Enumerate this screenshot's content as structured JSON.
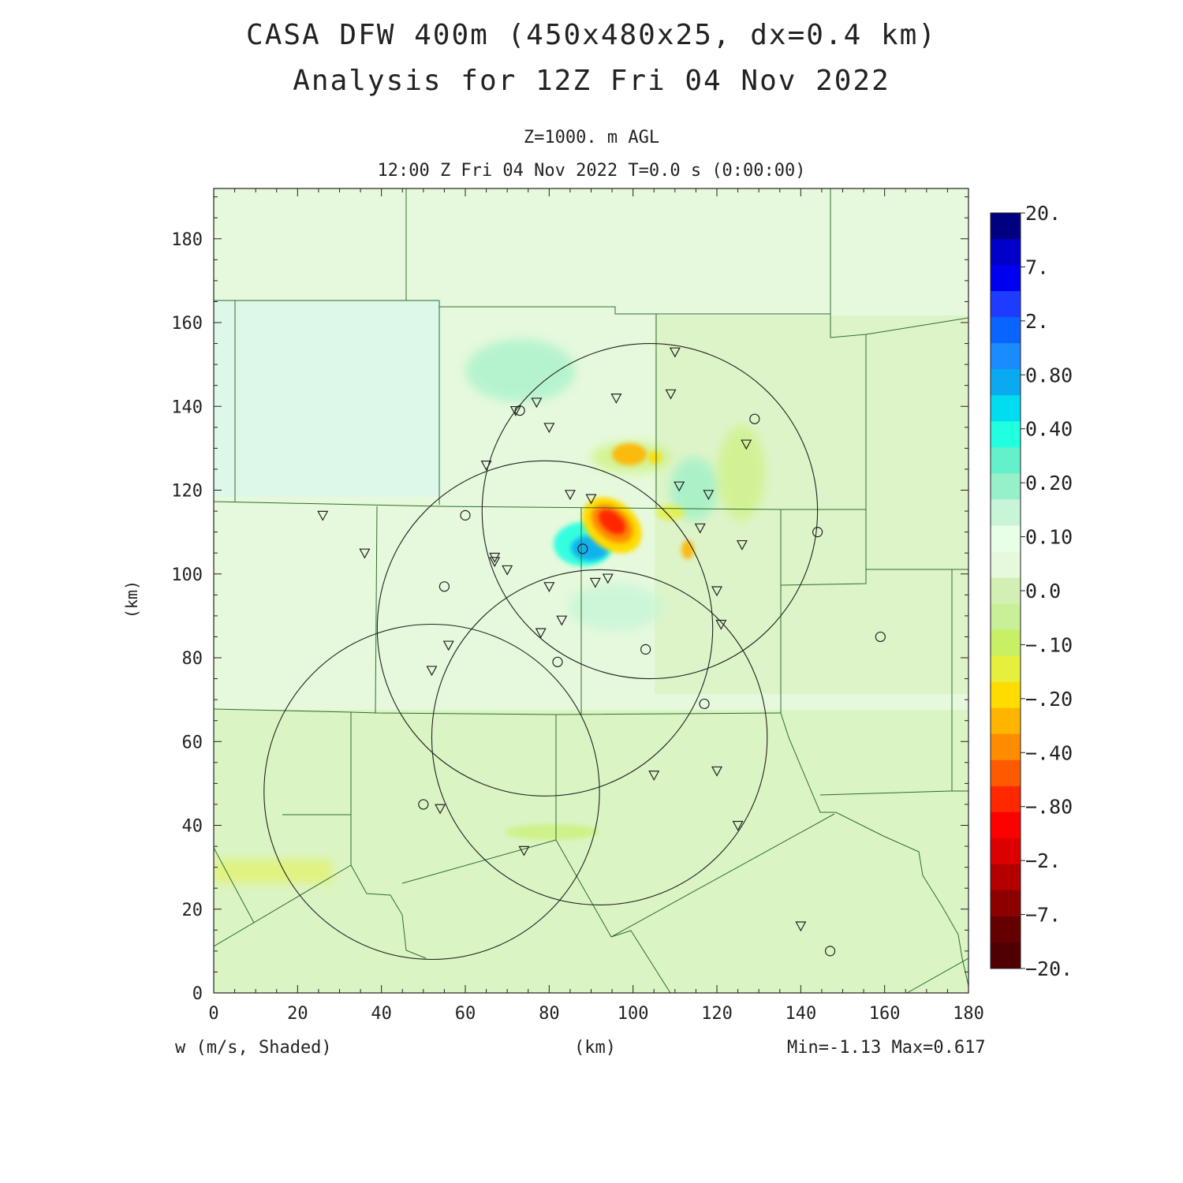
{
  "header": {
    "title_line1": "CASA DFW 400m (450x480x25, dx=0.4 km)",
    "title_line2": "Analysis for 12Z Fri 04 Nov 2022",
    "level": "Z=1000. m AGL",
    "time": "12:00 Z Fri 04 Nov 2022    T=0.0 s (0:00:00)"
  },
  "footer": {
    "variable": "w (m/s, Shaded)",
    "xunits": "(km)",
    "minmax": "Min=-1.13 Max=0.617"
  },
  "axes": {
    "ylabel": "(km)",
    "xlim": [
      0,
      180
    ],
    "ylim": [
      0,
      192
    ],
    "xticks": [
      0,
      20,
      40,
      60,
      80,
      100,
      120,
      140,
      160,
      180
    ],
    "yticks": [
      0,
      20,
      40,
      60,
      80,
      100,
      120,
      140,
      160,
      180
    ]
  },
  "colors": {
    "background_field": "#e6f9dc",
    "county_lines": "#2e6e2e",
    "radar_rings": "#222222"
  },
  "colorbar": {
    "labels": [
      "20.",
      "7.",
      "2.",
      "0.80",
      "0.40",
      "0.20",
      "0.10",
      "0.0",
      "-.10",
      "-.20",
      "-.40",
      "-.80",
      "-2.",
      "-7.",
      "-20."
    ],
    "colors_top_to_bottom": [
      "#000080",
      "#0000c8",
      "#0000f0",
      "#1e3cff",
      "#0a64ff",
      "#1a8cff",
      "#0aaaf0",
      "#00dcf0",
      "#20ffe0",
      "#64f0c8",
      "#96f0c8",
      "#c8f5d8",
      "#e6ffe6",
      "#e6f9dc",
      "#d2f0b4",
      "#c8f096",
      "#c8f064",
      "#e6f03c",
      "#ffdc00",
      "#ffb400",
      "#ff8c00",
      "#ff5a00",
      "#ff2800",
      "#ff0000",
      "#dc0000",
      "#b40000",
      "#8c0000",
      "#640000",
      "#500000"
    ]
  },
  "chart_data": {
    "type": "heatmap",
    "variable": "w (m/s, Shaded)",
    "level": "Z=1000. m AGL",
    "min": -1.13,
    "max": 0.617,
    "xlim": [
      0,
      180
    ],
    "ylim": [
      0,
      192
    ],
    "radar_rings": [
      {
        "center_km": [
          104,
          115
        ],
        "radius_km": 40
      },
      {
        "center_km": [
          79,
          87
        ],
        "radius_km": 40
      },
      {
        "center_km": [
          92,
          61
        ],
        "radius_km": 40
      },
      {
        "center_km": [
          52,
          48
        ],
        "radius_km": 40
      }
    ],
    "features": [
      {
        "kind": "downdraft_max",
        "center_km": [
          97,
          111
        ],
        "value": -1.13
      },
      {
        "kind": "updraft",
        "center_km": [
          90,
          107
        ],
        "value": 0.617
      },
      {
        "kind": "downdraft",
        "center_km": [
          101,
          128
        ],
        "value": -0.4
      },
      {
        "kind": "downdraft",
        "center_km": [
          113,
          105
        ],
        "value": -0.3
      }
    ],
    "site_circles_km": [
      [
        73,
        139
      ],
      [
        88,
        106
      ],
      [
        60,
        114
      ],
      [
        55,
        97
      ],
      [
        82,
        79
      ],
      [
        103,
        82
      ],
      [
        117,
        69
      ],
      [
        129,
        137
      ],
      [
        144,
        110
      ],
      [
        159,
        85
      ],
      [
        50,
        45
      ],
      [
        147,
        10
      ]
    ],
    "site_triangles_km": [
      [
        110,
        153
      ],
      [
        109,
        143
      ],
      [
        96,
        142
      ],
      [
        77,
        141
      ],
      [
        72,
        139
      ],
      [
        80,
        135
      ],
      [
        65,
        126
      ],
      [
        85,
        119
      ],
      [
        90,
        118
      ],
      [
        111,
        121
      ],
      [
        118,
        119
      ],
      [
        126,
        107
      ],
      [
        116,
        111
      ],
      [
        26,
        114
      ],
      [
        36,
        105
      ],
      [
        67,
        104
      ],
      [
        70,
        101
      ],
      [
        67,
        103
      ],
      [
        80,
        97
      ],
      [
        91,
        98
      ],
      [
        94,
        99
      ],
      [
        120,
        96
      ],
      [
        121,
        88
      ],
      [
        83,
        89
      ],
      [
        78,
        86
      ],
      [
        56,
        83
      ],
      [
        52,
        77
      ],
      [
        127,
        131
      ],
      [
        105,
        52
      ],
      [
        120,
        53
      ],
      [
        125,
        40
      ],
      [
        54,
        44
      ],
      [
        74,
        34
      ],
      [
        140,
        16
      ]
    ]
  }
}
